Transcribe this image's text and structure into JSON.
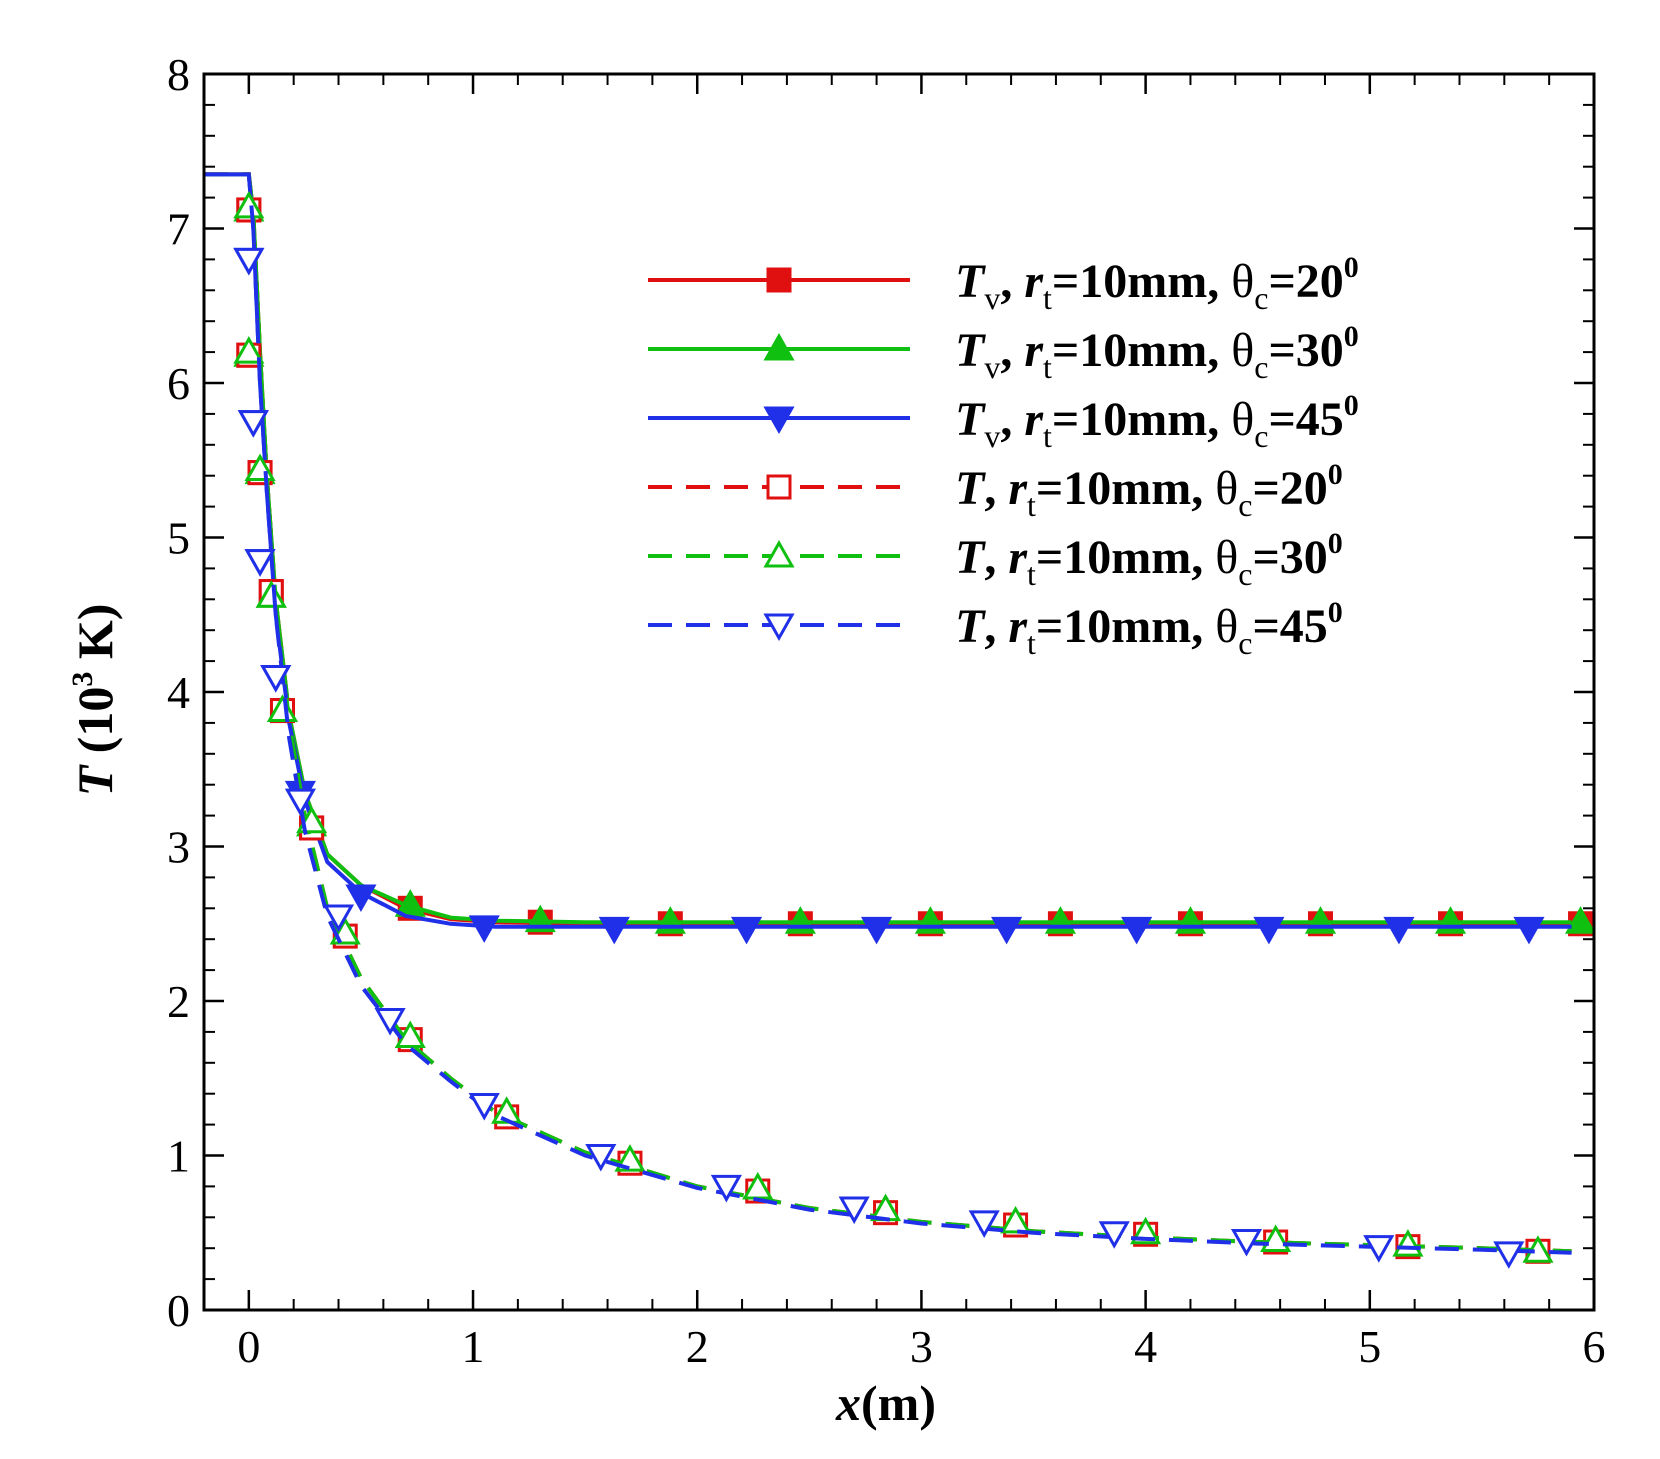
{
  "chart_data": {
    "type": "line",
    "xlabel": {
      "var": "x",
      "unit": "(m)"
    },
    "ylabel": {
      "var": "T",
      "unit": " (10",
      "exp": "3",
      "unit_end": " K)"
    },
    "xlim": [
      -0.2,
      6
    ],
    "ylim": [
      0,
      8
    ],
    "xticks": [
      "0",
      "1",
      "2",
      "3",
      "4",
      "5",
      "6"
    ],
    "yticks": [
      "0",
      "1",
      "2",
      "3",
      "4",
      "5",
      "6",
      "7",
      "8"
    ],
    "legend_position": "top-right",
    "grid": false,
    "x": [
      0,
      0.02,
      0.05,
      0.08,
      0.12,
      0.18,
      0.25,
      0.35,
      0.5,
      0.7,
      0.9,
      1.1,
      1.5,
      2,
      2.5,
      3,
      3.5,
      4,
      4.5,
      5,
      5.5,
      5.9
    ],
    "series": [
      {
        "name_var": "T",
        "name_sub": "v",
        "r_var": "r",
        "r_sub": "t",
        "r_val": "=10mm,",
        "theta": "θ",
        "theta_sub": "c",
        "theta_val": "=20",
        "theta_sup": "0",
        "color": "#e01010",
        "dash": "solid",
        "marker": "square",
        "filled": true,
        "values": [
          7.35,
          7.1,
          6.2,
          5.4,
          4.6,
          3.85,
          3.35,
          2.95,
          2.75,
          2.6,
          2.53,
          2.51,
          2.5,
          2.5,
          2.5,
          2.5,
          2.5,
          2.5,
          2.5,
          2.5,
          2.5,
          2.5
        ],
        "markers_x": [
          0,
          0,
          0.05,
          0.1,
          0.15,
          0.28,
          0.72,
          1.3,
          1.88,
          2.46,
          3.04,
          3.62,
          4.2,
          4.78,
          5.36,
          5.94
        ],
        "markers_y": [
          7.12,
          6.18,
          5.42,
          4.65,
          3.88,
          3.12,
          2.6,
          2.51,
          2.5,
          2.5,
          2.5,
          2.5,
          2.5,
          2.5,
          2.5,
          2.5
        ]
      },
      {
        "name_var": "T",
        "name_sub": "v",
        "r_var": "r",
        "r_sub": "t",
        "r_val": "=10mm,",
        "theta": "θ",
        "theta_sub": "c",
        "theta_val": "=30",
        "theta_sup": "0",
        "color": "#10c010",
        "dash": "solid",
        "marker": "triangle-up",
        "filled": true,
        "values": [
          7.35,
          7.1,
          6.2,
          5.4,
          4.6,
          3.85,
          3.35,
          2.95,
          2.75,
          2.62,
          2.54,
          2.52,
          2.51,
          2.51,
          2.51,
          2.51,
          2.51,
          2.51,
          2.51,
          2.51,
          2.51,
          2.51
        ],
        "markers_x": [
          0,
          0,
          0.05,
          0.1,
          0.15,
          0.28,
          0.72,
          1.3,
          1.88,
          2.46,
          3.04,
          3.62,
          4.2,
          4.78,
          5.36,
          5.94
        ],
        "markers_y": [
          7.12,
          6.18,
          5.42,
          4.62,
          3.88,
          3.14,
          2.62,
          2.52,
          2.51,
          2.51,
          2.51,
          2.51,
          2.51,
          2.51,
          2.51,
          2.51
        ]
      },
      {
        "name_var": "T",
        "name_sub": "v",
        "r_var": "r",
        "r_sub": "t",
        "r_val": "=10mm,",
        "theta": "θ",
        "theta_sub": "c",
        "theta_val": "=45",
        "theta_sup": "0",
        "color": "#2030e8",
        "dash": "solid",
        "marker": "triangle-down",
        "filled": true,
        "values": [
          7.35,
          7.0,
          6.0,
          5.3,
          4.5,
          3.8,
          3.3,
          2.9,
          2.7,
          2.55,
          2.5,
          2.48,
          2.48,
          2.48,
          2.48,
          2.48,
          2.48,
          2.48,
          2.48,
          2.48,
          2.48,
          2.48
        ],
        "markers_x": [
          0,
          0.02,
          0.05,
          0.12,
          0.23,
          0.5,
          1.05,
          1.63,
          2.22,
          2.8,
          3.38,
          3.96,
          4.55,
          5.13,
          5.71
        ],
        "markers_y": [
          6.8,
          5.75,
          4.85,
          4.1,
          3.35,
          2.68,
          2.48,
          2.47,
          2.47,
          2.47,
          2.47,
          2.47,
          2.47,
          2.47,
          2.47
        ]
      },
      {
        "name_var": "T",
        "name_sub": "",
        "r_var": "r",
        "r_sub": "t",
        "r_val": "=10mm,",
        "theta": "θ",
        "theta_sub": "c",
        "theta_val": "=20",
        "theta_sup": "0",
        "color": "#e01010",
        "dash": "dashed",
        "marker": "square",
        "filled": false,
        "values": [
          7.35,
          7.1,
          6.2,
          5.4,
          4.6,
          3.8,
          3.2,
          2.6,
          2.15,
          1.75,
          1.5,
          1.28,
          1.02,
          0.8,
          0.66,
          0.57,
          0.51,
          0.47,
          0.44,
          0.42,
          0.4,
          0.38
        ],
        "markers_x": [
          0,
          0,
          0.05,
          0.1,
          0.15,
          0.28,
          0.43,
          0.72,
          1.15,
          1.7,
          2.27,
          2.84,
          3.42,
          4.0,
          4.58,
          5.17,
          5.75
        ],
        "markers_y": [
          7.12,
          6.18,
          5.42,
          4.65,
          3.88,
          3.12,
          2.42,
          1.75,
          1.25,
          0.95,
          0.77,
          0.63,
          0.55,
          0.49,
          0.44,
          0.41,
          0.38
        ]
      },
      {
        "name_var": "T",
        "name_sub": "",
        "r_var": "r",
        "r_sub": "t",
        "r_val": "=10mm,",
        "theta": "θ",
        "theta_sub": "c",
        "theta_val": "=30",
        "theta_sup": "0",
        "color": "#10c010",
        "dash": "dashed",
        "marker": "triangle-up",
        "filled": false,
        "values": [
          7.35,
          7.1,
          6.2,
          5.4,
          4.6,
          3.8,
          3.2,
          2.6,
          2.15,
          1.75,
          1.5,
          1.28,
          1.02,
          0.8,
          0.66,
          0.57,
          0.51,
          0.47,
          0.44,
          0.42,
          0.4,
          0.38
        ],
        "markers_x": [
          0,
          0,
          0.05,
          0.1,
          0.15,
          0.28,
          0.43,
          0.72,
          1.15,
          1.7,
          2.27,
          2.84,
          3.42,
          4.0,
          4.58,
          5.17,
          5.75
        ],
        "markers_y": [
          7.14,
          6.2,
          5.44,
          4.62,
          3.88,
          3.16,
          2.44,
          1.77,
          1.28,
          0.97,
          0.79,
          0.65,
          0.57,
          0.5,
          0.45,
          0.42,
          0.38
        ]
      },
      {
        "name_var": "T",
        "name_sub": "",
        "r_var": "r",
        "r_sub": "t",
        "r_val": "=10mm,",
        "theta": "θ",
        "theta_sub": "c",
        "theta_val": "=45",
        "theta_sup": "0",
        "color": "#2030e8",
        "dash": "dashed",
        "marker": "triangle-down",
        "filled": false,
        "values": [
          7.35,
          7.0,
          6.0,
          5.3,
          4.5,
          3.7,
          3.1,
          2.55,
          2.1,
          1.72,
          1.48,
          1.26,
          1.0,
          0.79,
          0.65,
          0.56,
          0.5,
          0.46,
          0.43,
          0.41,
          0.39,
          0.37
        ],
        "markers_x": [
          0,
          0.02,
          0.05,
          0.12,
          0.23,
          0.4,
          0.63,
          1.05,
          1.57,
          2.13,
          2.7,
          3.28,
          3.86,
          4.45,
          5.04,
          5.62
        ],
        "markers_y": [
          6.8,
          5.75,
          4.85,
          4.1,
          3.3,
          2.55,
          1.88,
          1.33,
          1.0,
          0.8,
          0.66,
          0.57,
          0.5,
          0.45,
          0.41,
          0.37
        ]
      }
    ]
  }
}
